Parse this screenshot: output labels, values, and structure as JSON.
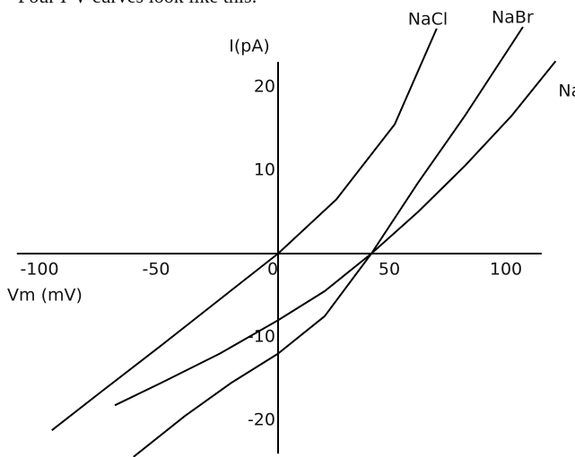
{
  "chart_data": {
    "type": "line",
    "title": "Four I-V curves look like this:",
    "x_label": "Vm (mV)",
    "y_label": "I(pA)",
    "xlim": [
      -112,
      113
    ],
    "ylim": [
      -24,
      23
    ],
    "xticks": [
      -100,
      -50,
      0,
      50,
      100
    ],
    "yticks": [
      -20,
      -10,
      10,
      20
    ],
    "series": [
      {
        "name": "NaCl",
        "color": "#000000",
        "x": [
          -97,
          -75,
          -50,
          -25,
          0,
          25,
          50,
          68
        ],
        "values": [
          -21.2,
          -16.4,
          -11,
          -5.5,
          0,
          6.5,
          15.5,
          27
        ]
      },
      {
        "name": "NaBr",
        "color": "#000000",
        "x": [
          -62,
          -40,
          -20,
          0,
          20,
          40,
          60,
          80,
          105
        ],
        "values": [
          -24.4,
          -19.5,
          -15.5,
          -12,
          -7.5,
          0,
          8.5,
          16.5,
          27.2
        ]
      },
      {
        "name": "NaI",
        "color": "#000000",
        "x": [
          -70,
          -50,
          -25,
          0,
          20,
          40,
          60,
          80,
          100,
          119
        ],
        "values": [
          -18.2,
          -15.5,
          -12,
          -8,
          -4.5,
          0,
          5,
          10.5,
          16.5,
          23.1
        ]
      }
    ]
  }
}
